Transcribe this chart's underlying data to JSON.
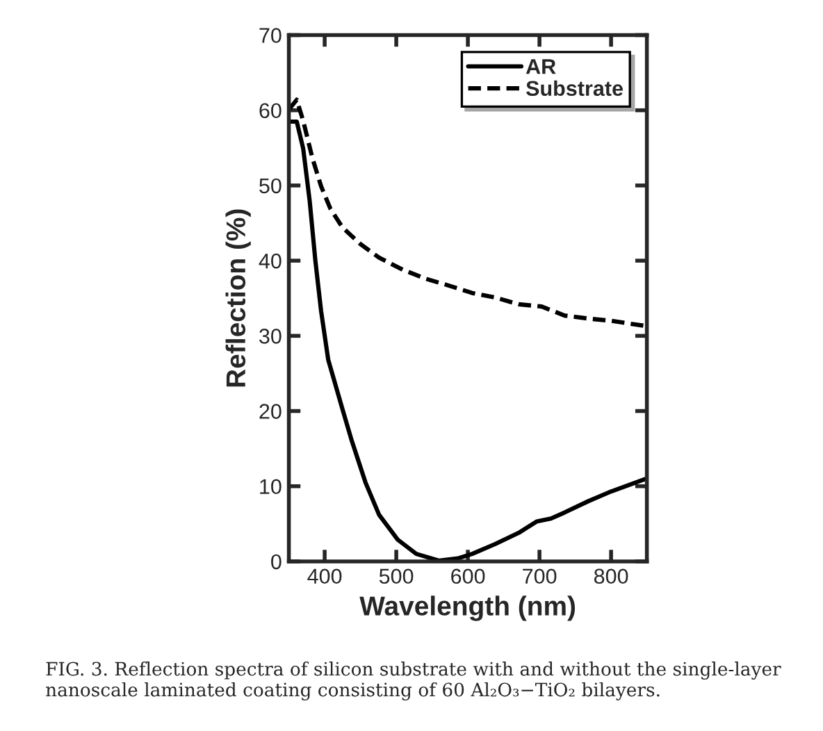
{
  "chart_data": {
    "type": "line",
    "xlabel": "Wavelength (nm)",
    "ylabel": "Reflection (%)",
    "xlim": [
      350,
      850
    ],
    "xticks": [
      400,
      500,
      600,
      700,
      800
    ],
    "ylim": [
      0,
      70
    ],
    "yticks": [
      0,
      10,
      20,
      30,
      40,
      50,
      60,
      70
    ],
    "grid": false,
    "legend": "top right",
    "marker": "none",
    "series": [
      {
        "name": "AR",
        "color": "#000000",
        "line_style": "solid",
        "x": [
          350,
          361,
          370,
          379,
          387,
          395,
          405,
          412,
          425,
          438,
          457,
          476,
          502,
          528,
          560,
          586,
          606,
          638,
          671,
          696,
          716,
          735,
          768,
          800,
          849
        ],
        "values": [
          58.5,
          58.5,
          54.9,
          48.0,
          40.0,
          33.3,
          26.8,
          24.5,
          20.2,
          16.0,
          10.5,
          6.2,
          2.9,
          1.0,
          0.1,
          0.4,
          1.0,
          2.3,
          3.8,
          5.3,
          5.7,
          6.5,
          8.0,
          9.3,
          11.0
        ]
      },
      {
        "name": "Substrate",
        "color": "#000000",
        "line_style": "dashed",
        "x": [
          350,
          361,
          370,
          383,
          395,
          408,
          425,
          450,
          476,
          509,
          541,
          573,
          606,
          638,
          671,
          703,
          735,
          768,
          800,
          849
        ],
        "values": [
          60.1,
          61.4,
          58.6,
          53.6,
          49.9,
          46.9,
          44.4,
          42.2,
          40.4,
          38.8,
          37.6,
          36.7,
          35.7,
          35.1,
          34.2,
          33.9,
          32.7,
          32.3,
          32.0,
          31.3
        ]
      }
    ],
    "annotations": [
      "FIG. 3. Reflection spectra of silicon substrate with and without the single-layer nanoscale laminated coating consisting of 60 Al₂O₃−TiO₂ bilayers."
    ]
  }
}
